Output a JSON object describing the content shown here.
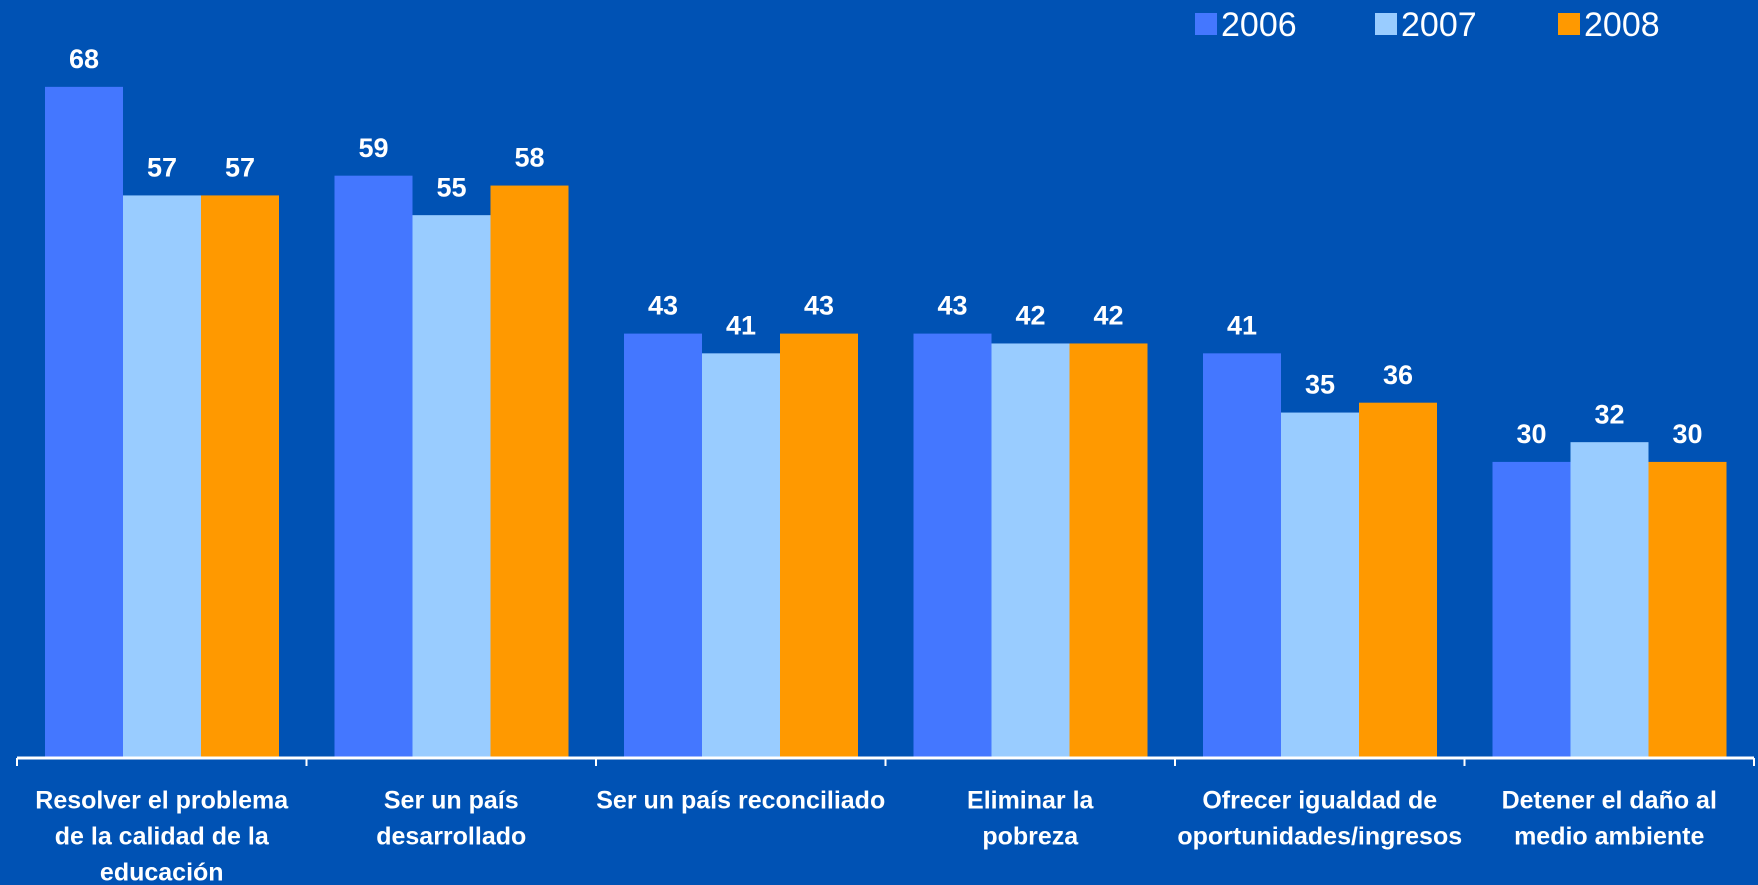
{
  "chart_data": {
    "type": "bar",
    "categories": [
      [
        "Resolver el problema",
        "de la calidad de la",
        "educación"
      ],
      [
        "Ser un país",
        "desarrollado"
      ],
      [
        "Ser un país reconciliado"
      ],
      [
        "Eliminar la",
        "pobreza"
      ],
      [
        "Ofrecer igualdad de",
        "oportunidades/ingresos"
      ],
      [
        "Detener el daño al",
        "medio ambiente"
      ]
    ],
    "series": [
      {
        "name": "2006",
        "color": "#4477ff",
        "values": [
          68,
          59,
          43,
          43,
          41,
          30
        ]
      },
      {
        "name": "2007",
        "color": "#99ccff",
        "values": [
          57,
          55,
          41,
          42,
          35,
          32
        ]
      },
      {
        "name": "2008",
        "color": "#ff9900",
        "values": [
          57,
          58,
          43,
          42,
          36,
          30
        ]
      }
    ],
    "ylim": [
      0,
      76.8
    ],
    "legend": "top-right"
  }
}
